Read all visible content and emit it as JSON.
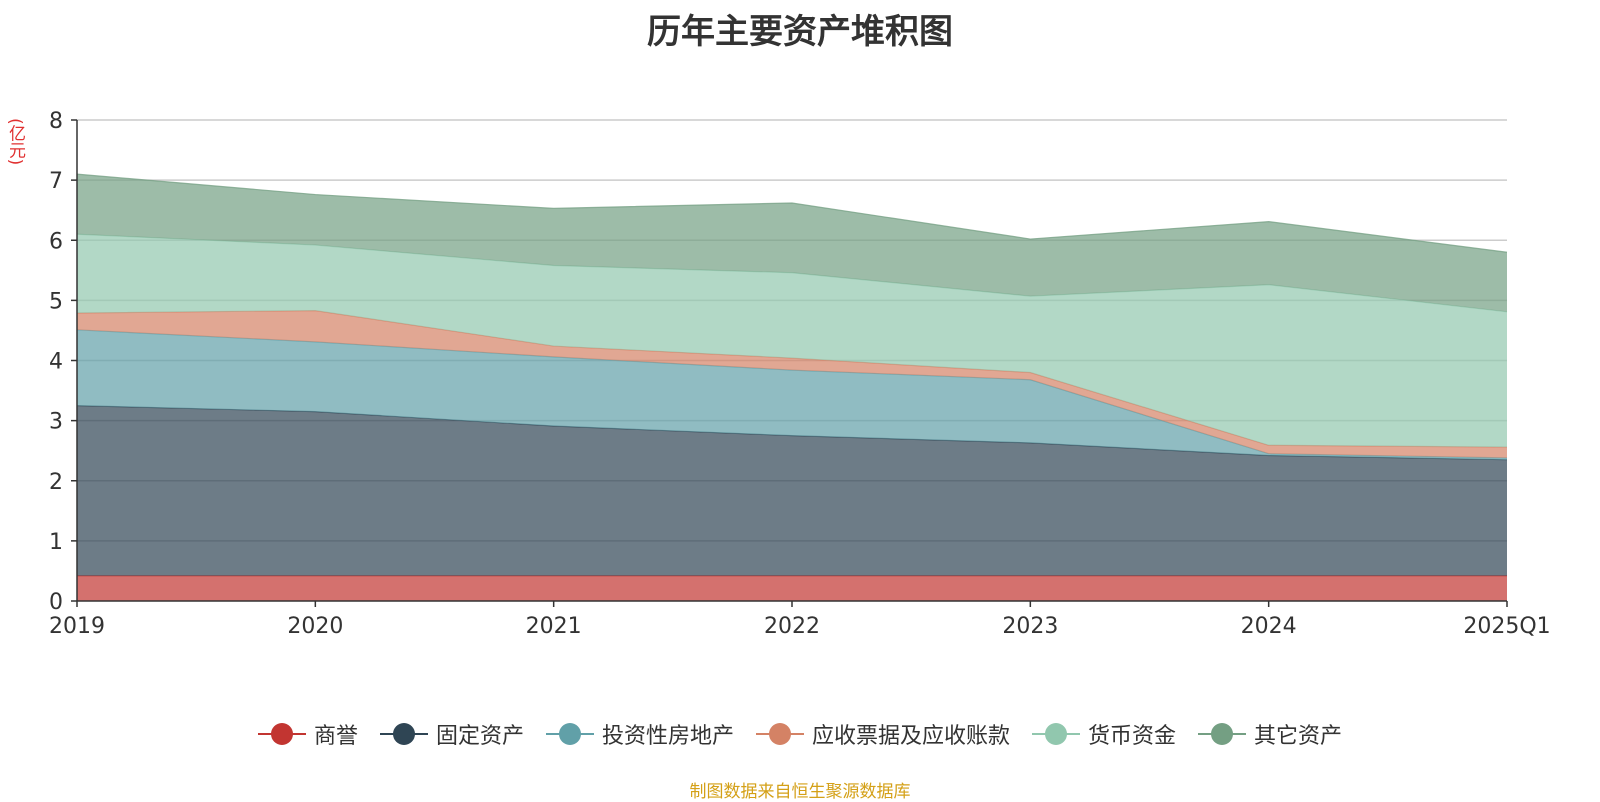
{
  "chart_data": {
    "type": "area",
    "title": "历年主要资产堆积图",
    "unit": "(亿元)",
    "x": [
      "2019",
      "2020",
      "2021",
      "2022",
      "2023",
      "2024",
      "2025Q1"
    ],
    "ylim": [
      0,
      8
    ],
    "yticks": [
      0,
      1,
      2,
      3,
      4,
      5,
      6,
      7,
      8
    ],
    "grid": true,
    "stacked": true,
    "legend_position": "bottom",
    "series": [
      {
        "name": "商誉",
        "values": [
          0.42,
          0.42,
          0.42,
          0.42,
          0.42,
          0.42,
          0.42
        ],
        "color": "#c23531"
      },
      {
        "name": "固定资产",
        "values": [
          2.83,
          2.73,
          2.49,
          2.33,
          2.21,
          2.0,
          1.93
        ],
        "color": "#2f4554"
      },
      {
        "name": "投资性房地产",
        "values": [
          1.26,
          1.16,
          1.15,
          1.09,
          1.05,
          0.03,
          0.03
        ],
        "color": "#61a0a8"
      },
      {
        "name": "应收票据及应收账款",
        "values": [
          0.28,
          0.52,
          0.18,
          0.2,
          0.12,
          0.14,
          0.18
        ],
        "color": "#d48265"
      },
      {
        "name": "货币资金",
        "values": [
          1.31,
          1.09,
          1.34,
          1.42,
          1.27,
          2.67,
          2.25
        ],
        "color": "#91c7ae"
      },
      {
        "name": "其它资产",
        "values": [
          1.0,
          0.84,
          0.95,
          1.16,
          0.95,
          1.05,
          0.99
        ],
        "color": "#749f83"
      }
    ]
  },
  "footer": {
    "source": "制图数据来自恒生聚源数据库"
  }
}
